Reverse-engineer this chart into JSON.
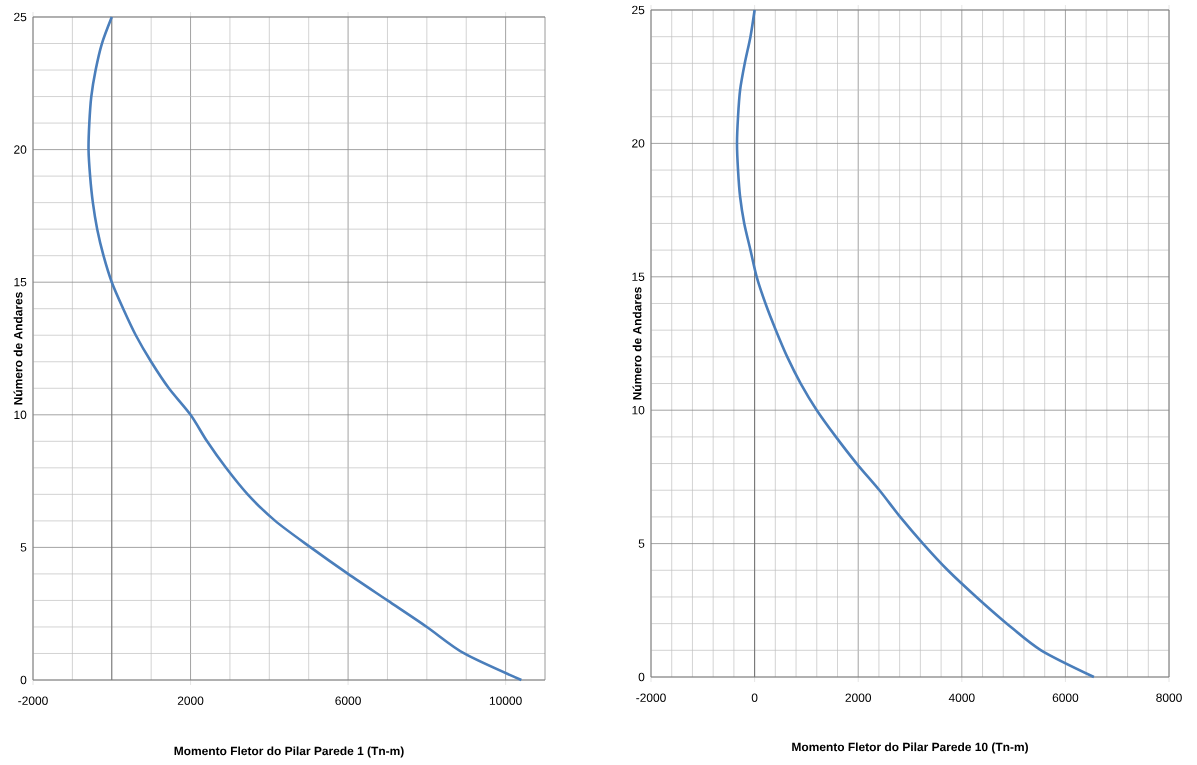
{
  "chart_data": [
    {
      "type": "line",
      "xlabel": "Momento Fletor do Pilar Parede 1 (Tn-m)",
      "ylabel": "Número de Andares",
      "x": [
        10400,
        8950,
        8000,
        7000,
        6000,
        5050,
        4150,
        3450,
        2900,
        2420,
        2000,
        1450,
        1000,
        610,
        290,
        0,
        -210,
        -370,
        -480,
        -550,
        -590,
        -570,
        -520,
        -410,
        -250,
        0
      ],
      "series": [
        {
          "color": "#4a7ebb",
          "values": [
            0,
            1,
            2,
            3,
            4,
            5,
            6,
            7,
            8,
            9,
            10,
            11,
            12,
            13,
            14,
            15,
            16,
            17,
            18,
            19,
            20,
            21,
            22,
            23,
            24,
            25
          ]
        }
      ],
      "xlim": [
        -2000,
        11000
      ],
      "ylim": [
        0,
        25
      ],
      "xticks": [
        -2000,
        2000,
        6000,
        10000
      ],
      "yticks": [
        0,
        5,
        10,
        15,
        20,
        25
      ],
      "grid": true
    },
    {
      "type": "line",
      "xlabel": "Momento Fletor do Pilar Parede 10 (Tn-m)",
      "ylabel": "Número de Andares",
      "x": [
        6550,
        5530,
        4870,
        4280,
        3730,
        3250,
        2810,
        2410,
        1970,
        1570,
        1200,
        890,
        630,
        410,
        210,
        40,
        -80,
        -200,
        -280,
        -320,
        -340,
        -320,
        -280,
        -190,
        -80,
        0
      ],
      "series": [
        {
          "color": "#4a7ebb",
          "values": [
            0,
            1,
            2,
            3,
            4,
            5,
            6,
            7,
            8,
            9,
            10,
            11,
            12,
            13,
            14,
            15,
            16,
            17,
            18,
            19,
            20,
            21,
            22,
            23,
            24,
            25
          ]
        }
      ],
      "xlim": [
        -2000,
        8000
      ],
      "ylim": [
        0,
        25
      ],
      "xticks": [
        -2000,
        0,
        2000,
        4000,
        6000,
        8000
      ],
      "yticks": [
        0,
        5,
        10,
        15,
        20,
        25
      ],
      "grid": true
    }
  ]
}
